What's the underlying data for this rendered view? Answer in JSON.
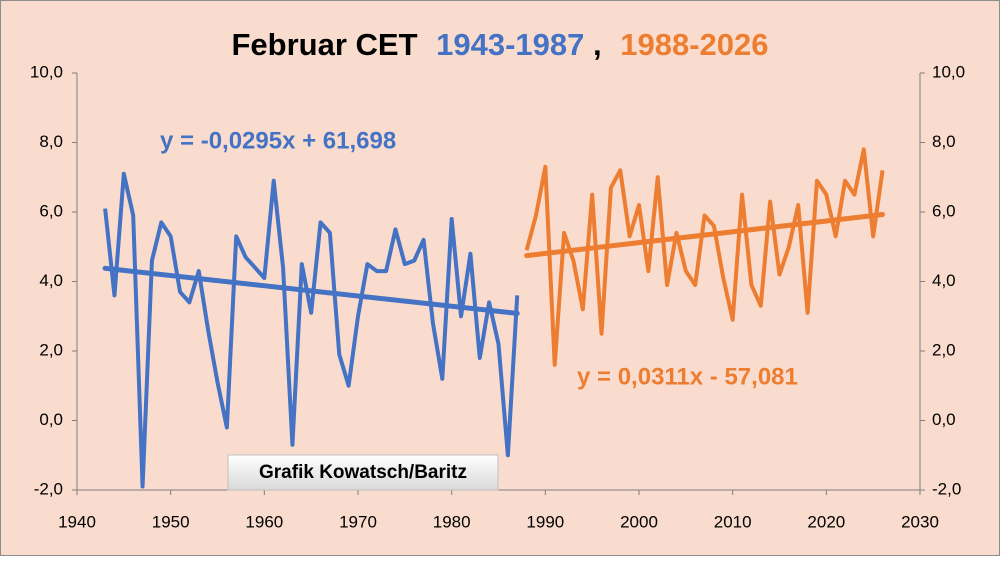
{
  "chart_data": {
    "type": "line",
    "title_parts": [
      "Februar CET",
      "1943-1987",
      ",",
      "1988-2026"
    ],
    "annotation": "Grafik Kowatsch/Baritz",
    "xlim": [
      1940,
      2030
    ],
    "xticks": [
      1940,
      1950,
      1960,
      1970,
      1980,
      1990,
      2000,
      2010,
      2020,
      2030
    ],
    "ylim": [
      -2,
      10
    ],
    "yticks": [
      {
        "value": -2,
        "label": "-2,0"
      },
      {
        "value": 0,
        "label": "0,0"
      },
      {
        "value": 2,
        "label": "2,0"
      },
      {
        "value": 4,
        "label": "4,0"
      },
      {
        "value": 6,
        "label": "6,0"
      },
      {
        "value": 8,
        "label": "8,0"
      },
      {
        "value": 10,
        "label": "10,0"
      }
    ],
    "y2lim": [
      -2,
      10
    ],
    "y2ticks": [
      {
        "value": -2,
        "label": "-2,0"
      },
      {
        "value": 0,
        "label": "0,0"
      },
      {
        "value": 2,
        "label": "2,0"
      },
      {
        "value": 4,
        "label": "4,0"
      },
      {
        "value": 6,
        "label": "6,0"
      },
      {
        "value": 8,
        "label": "8,0"
      },
      {
        "value": 10,
        "label": "10,0"
      }
    ],
    "series": [
      {
        "color": "#4472c4",
        "x": [
          1943,
          1944,
          1945,
          1946,
          1947,
          1948,
          1949,
          1950,
          1951,
          1952,
          1953,
          1954,
          1955,
          1956,
          1957,
          1958,
          1959,
          1960,
          1961,
          1962,
          1963,
          1964,
          1965,
          1966,
          1967,
          1968,
          1969,
          1970,
          1971,
          1972,
          1973,
          1974,
          1975,
          1976,
          1977,
          1978,
          1979,
          1980,
          1981,
          1982,
          1983,
          1984,
          1985,
          1986,
          1987
        ],
        "values": [
          6.1,
          3.6,
          7.1,
          5.9,
          -1.9,
          4.6,
          5.7,
          5.3,
          3.7,
          3.4,
          4.3,
          2.6,
          1.1,
          -0.2,
          5.3,
          4.7,
          4.4,
          4.1,
          6.9,
          4.4,
          -0.7,
          4.5,
          3.1,
          5.7,
          5.4,
          1.9,
          1.0,
          3.0,
          4.5,
          4.3,
          4.3,
          5.5,
          4.5,
          4.6,
          5.2,
          2.8,
          1.2,
          5.8,
          3.0,
          4.8,
          1.8,
          3.4,
          2.2,
          -1.0,
          3.6
        ],
        "trend": {
          "slope": -0.0295,
          "intercept": 61.698,
          "label": "y = -0,0295x + 61,698"
        }
      },
      {
        "color": "#ed7d31",
        "x": [
          1988,
          1989,
          1990,
          1991,
          1992,
          1993,
          1994,
          1995,
          1996,
          1997,
          1998,
          1999,
          2000,
          2001,
          2002,
          2003,
          2004,
          2005,
          2006,
          2007,
          2008,
          2009,
          2010,
          2011,
          2012,
          2013,
          2014,
          2015,
          2016,
          2017,
          2018,
          2019,
          2020,
          2021,
          2022,
          2023,
          2024,
          2025,
          2026
        ],
        "values": [
          4.9,
          5.9,
          7.3,
          1.6,
          5.4,
          4.6,
          3.2,
          6.5,
          2.5,
          6.7,
          7.2,
          5.3,
          6.2,
          4.3,
          7.0,
          3.9,
          5.4,
          4.3,
          3.9,
          5.9,
          5.6,
          4.1,
          2.9,
          6.5,
          3.9,
          3.3,
          6.3,
          4.2,
          5.0,
          6.2,
          3.1,
          6.9,
          6.5,
          5.3,
          6.9,
          6.5,
          7.8,
          5.3,
          7.2
        ],
        "trend": {
          "slope": 0.0311,
          "intercept": -57.081,
          "label": "y = 0,0311x - 57,081"
        }
      }
    ]
  }
}
